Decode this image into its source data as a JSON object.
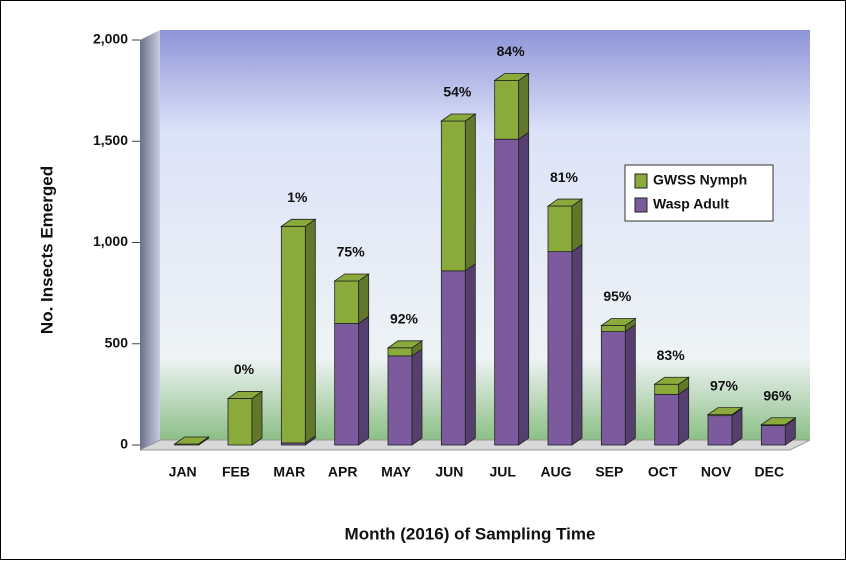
{
  "chart_data": {
    "type": "bar",
    "stacked": true,
    "xlabel": "Month (2016) of Sampling Time",
    "ylabel": "No. Insects Emerged",
    "categories": [
      "JAN",
      "FEB",
      "MAR",
      "APR",
      "MAY",
      "JUN",
      "JUL",
      "AUG",
      "SEP",
      "OCT",
      "NOV",
      "DEC"
    ],
    "series": [
      {
        "name": "Wasp Adult",
        "color": "#7b5a9e",
        "values": [
          0,
          0,
          10,
          600,
          440,
          860,
          1510,
          955,
          560,
          250,
          145,
          96
        ]
      },
      {
        "name": "GWSS Nymph",
        "color": "#8aaa3c",
        "values": [
          5,
          230,
          1070,
          210,
          40,
          740,
          290,
          225,
          30,
          50,
          5,
          4
        ]
      }
    ],
    "bar_labels": [
      null,
      "0%",
      "1%",
      "75%",
      "92%",
      "54%",
      "84%",
      "81%",
      "95%",
      "83%",
      "97%",
      "96%"
    ],
    "ylim": [
      0,
      2000
    ],
    "yticks": [
      0,
      500,
      {
        "value": 1000,
        "label": "1,000"
      },
      {
        "value": 1500,
        "label": "1,500"
      },
      {
        "value": 2000,
        "label": "2,000"
      }
    ],
    "legend": "upper right"
  }
}
